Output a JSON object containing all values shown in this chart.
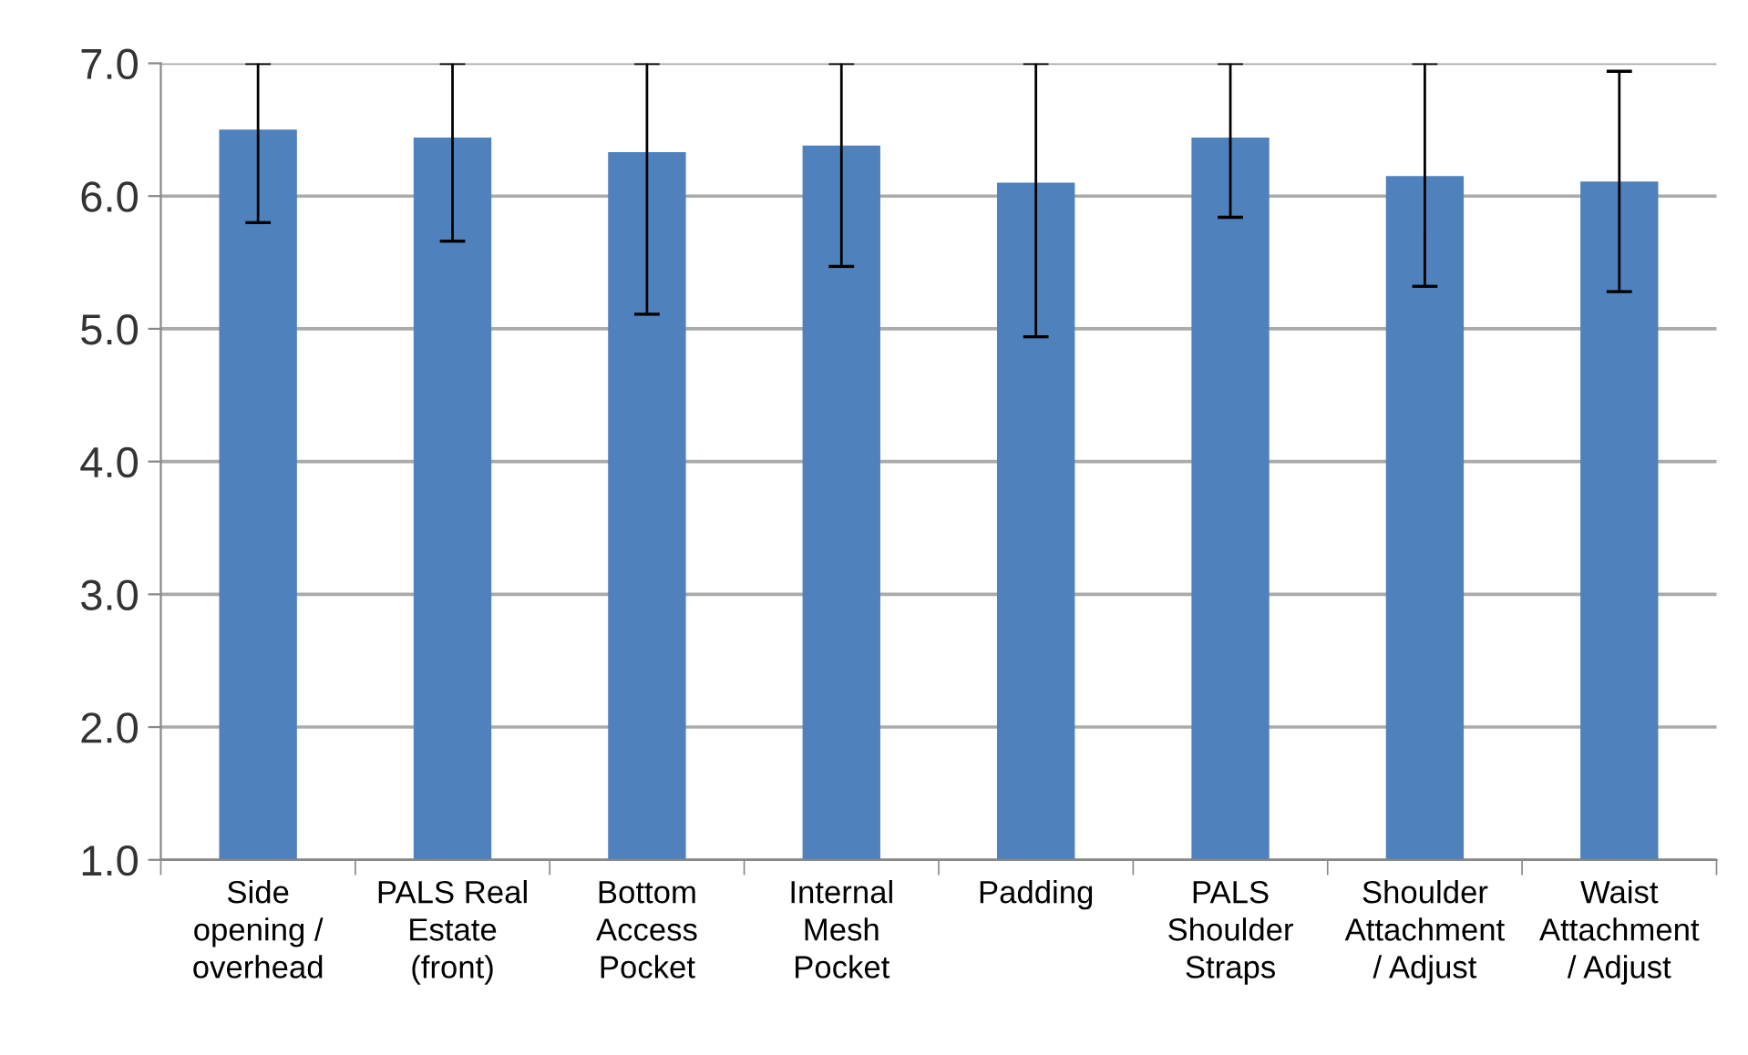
{
  "chart_data": {
    "type": "bar",
    "categories": [
      "Side\nopening /\noverhead",
      "PALS Real\nEstate\n(front)",
      "Bottom\nAccess\nPocket",
      "Internal\nMesh\nPocket",
      "Padding",
      "PALS\nShoulder\nStraps",
      "Shoulder\nAttachment\n/ Adjust",
      "Waist\nAttachment\n/ Adjust"
    ],
    "values": [
      6.5,
      6.44,
      6.33,
      6.38,
      6.1,
      6.44,
      6.15,
      6.11
    ],
    "errors": [
      [
        5.8,
        7.0
      ],
      [
        5.66,
        7.0
      ],
      [
        5.11,
        7.0
      ],
      [
        5.47,
        7.0
      ],
      [
        4.94,
        7.0
      ],
      [
        5.84,
        7.0
      ],
      [
        5.32,
        7.0
      ],
      [
        5.28,
        6.94
      ]
    ],
    "color": "#4f81bd",
    "ylim": [
      1,
      7
    ],
    "yticks": [
      {
        "value": 1,
        "label": "1.0"
      },
      {
        "value": 2,
        "label": "2.0"
      },
      {
        "value": 3,
        "label": "3.0"
      },
      {
        "value": 4,
        "label": "4.0"
      },
      {
        "value": 5,
        "label": "5.0"
      },
      {
        "value": 6,
        "label": "6.0"
      },
      {
        "value": 7,
        "label": "7.0"
      }
    ],
    "grid": "y"
  }
}
